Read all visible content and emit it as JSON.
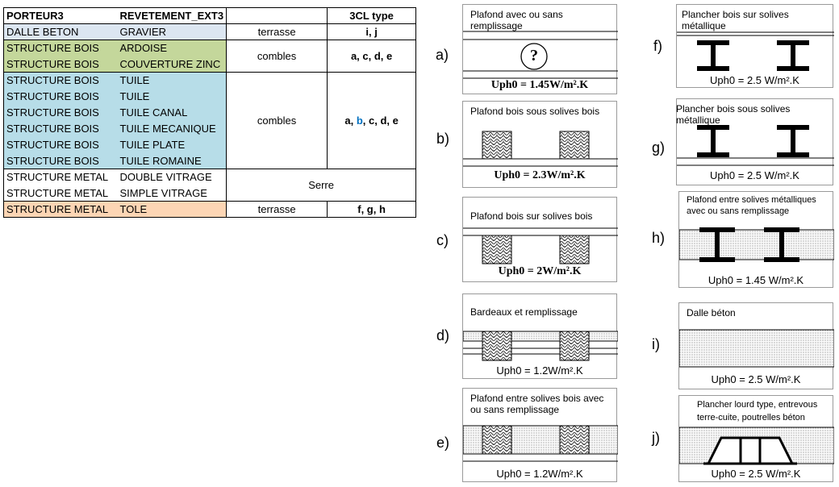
{
  "table": {
    "headers": [
      "PORTEUR3",
      "REVETEMENT_EXT3",
      "",
      "3CL type"
    ],
    "groups": [
      {
        "bg": "#dce6f1",
        "rows": [
          [
            "DALLE BETON",
            "GRAVIER"
          ]
        ],
        "usage": "terrasse",
        "types": "i, j"
      },
      {
        "bg": "#c4d79b",
        "rows": [
          [
            "STRUCTURE BOIS",
            "ARDOISE"
          ],
          [
            "STRUCTURE BOIS",
            "COUVERTURE ZINC"
          ]
        ],
        "usage": "combles",
        "types": "a, c, d, e"
      },
      {
        "bg": "#b7dde8",
        "rows": [
          [
            "STRUCTURE BOIS",
            "TUILE"
          ],
          [
            "STRUCTURE BOIS",
            "TUILE"
          ],
          [
            "STRUCTURE BOIS",
            "TUILE CANAL"
          ],
          [
            "STRUCTURE BOIS",
            "TUILE MECANIQUE"
          ],
          [
            "STRUCTURE BOIS",
            "TUILE PLATE"
          ],
          [
            "STRUCTURE BOIS",
            "TUILE ROMAINE"
          ]
        ],
        "usage": "combles",
        "types_parts": [
          "a, ",
          "b",
          ", c, d, e"
        ]
      },
      {
        "bg": "#ffffff",
        "rows": [
          [
            "STRUCTURE METAL",
            "DOUBLE VITRAGE"
          ],
          [
            "STRUCTURE METAL",
            "SIMPLE VITRAGE"
          ]
        ],
        "usage": "Serre",
        "types": ""
      },
      {
        "bg": "#fcd5b4",
        "rows": [
          [
            "STRUCTURE METAL",
            "TOLE"
          ]
        ],
        "usage": "terrasse",
        "types": "f, g, h"
      }
    ],
    "highlight_color": "#0070c0"
  },
  "panels": {
    "a": {
      "letter": "a)",
      "title": "Plafond avec ou sans remplissage",
      "value": "Uph0 = 1.45W/m².K",
      "symbol": "?"
    },
    "b": {
      "letter": "b)",
      "title": "Plafond bois sous solives bois",
      "value": "Uph0 = 2.3W/m².K"
    },
    "c": {
      "letter": "c)",
      "title": "Plafond bois sur solives bois",
      "value": "Uph0 = 2W/m².K"
    },
    "d": {
      "letter": "d)",
      "title": "Bardeaux et remplissage",
      "value": "Uph0 = 1.2W/m².K"
    },
    "e": {
      "letter": "e)",
      "title": "Plafond entre solives  bois avec\nou sans remplissage",
      "value": "Uph0 = 1.2W/m².K"
    },
    "f": {
      "letter": "f)",
      "title": "Plancher bois sur solives métallique",
      "value": "Uph0 = 2.5 W/m².K"
    },
    "g": {
      "letter": "g)",
      "title": "Plancher bois sous solives métallique",
      "value": "Uph0 = 2.5 W/m².K"
    },
    "h": {
      "letter": "h)",
      "title": "Plafond entre solives  métalliques\navec ou sans remplissage",
      "value": "Uph0 = 1.45 W/m².K"
    },
    "i": {
      "letter": "i)",
      "title": "Dalle béton",
      "value": "Uph0 = 2.5 W/m².K"
    },
    "j": {
      "letter": "j)",
      "title": "Plancher lourd type, entrevous\nterre-cuite, poutrelles béton",
      "value": "Uph0 = 2.5 W/m².K"
    }
  }
}
